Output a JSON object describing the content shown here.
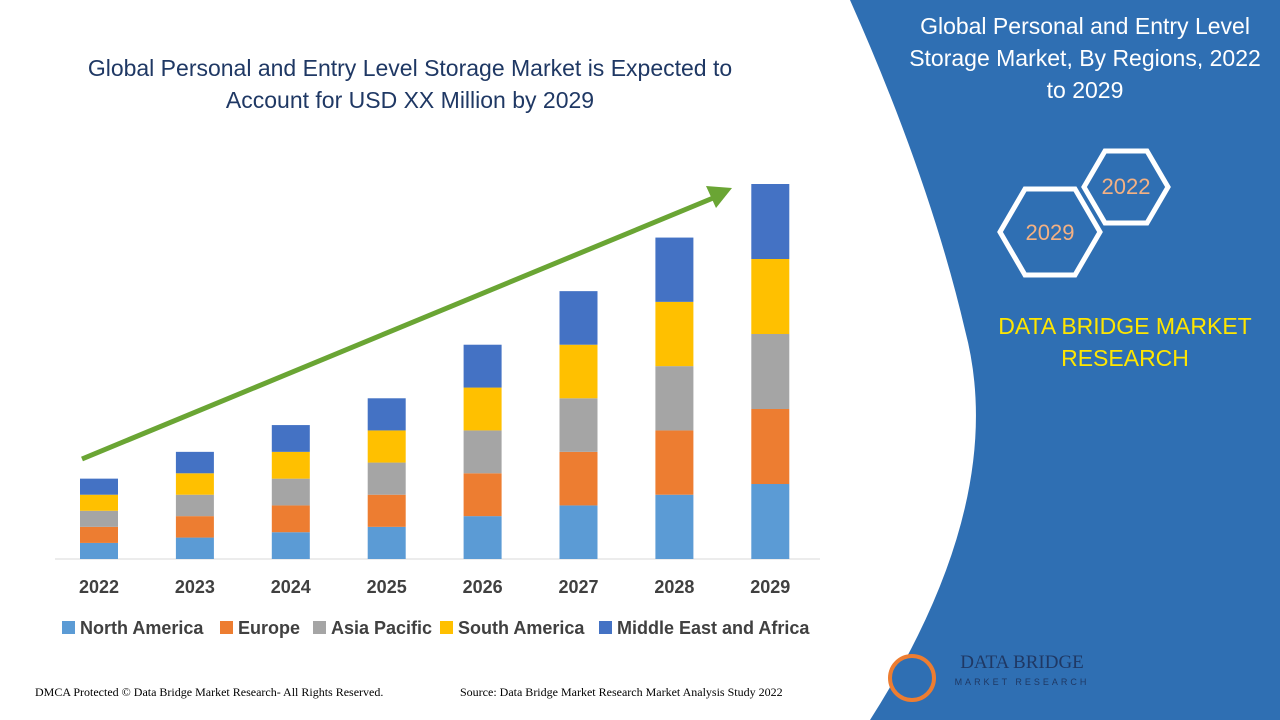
{
  "chart_data": {
    "type": "bar",
    "stacked": true,
    "title": "Global Personal and Entry Level Storage Market is Expected to Account for USD XX Million by 2029",
    "categories": [
      "2022",
      "2023",
      "2024",
      "2025",
      "2026",
      "2027",
      "2028",
      "2029"
    ],
    "series": [
      {
        "name": "North America",
        "color": "#5b9bd5",
        "values": [
          3,
          4,
          5,
          6,
          8,
          10,
          12,
          14
        ]
      },
      {
        "name": "Europe",
        "color": "#ed7d31",
        "values": [
          3,
          4,
          5,
          6,
          8,
          10,
          12,
          14
        ]
      },
      {
        "name": "Asia Pacific",
        "color": "#a5a5a5",
        "values": [
          3,
          4,
          5,
          6,
          8,
          10,
          12,
          14
        ]
      },
      {
        "name": "South America",
        "color": "#ffc000",
        "values": [
          3,
          4,
          5,
          6,
          8,
          10,
          12,
          14
        ]
      },
      {
        "name": "Middle East and Africa",
        "color": "#4472c4",
        "values": [
          3,
          4,
          5,
          6,
          8,
          10,
          12,
          14
        ]
      }
    ],
    "legend": "bottom"
  },
  "panel": {
    "title": "Global Personal and Entry Level Storage Market, By Regions, 2022 to 2029",
    "hex_a": "2022",
    "hex_b": "2029",
    "brand": "DATA BRIDGE MARKET RESEARCH",
    "logo_name": "DATA BRIDGE",
    "logo_sub": "MARKET RESEARCH"
  },
  "footer": {
    "dmca": "DMCA Protected © Data Bridge Market Research- All Rights Reserved.",
    "source": "Source: Data Bridge Market Research Market Analysis Study 2022"
  }
}
